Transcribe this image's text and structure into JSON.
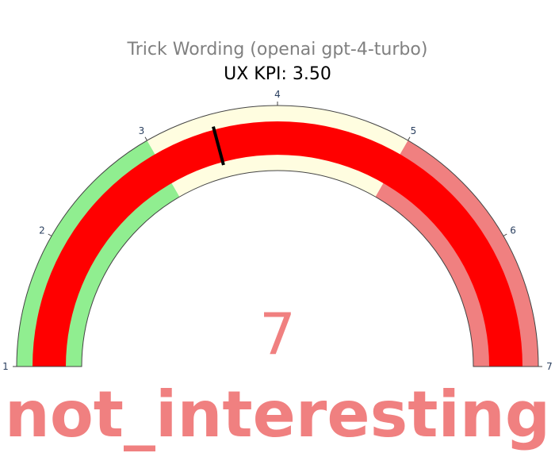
{
  "chart_data": {
    "type": "gauge",
    "title": "Trick Wording (openai gpt-4-turbo)",
    "subtitle": "UX KPI: 3.50",
    "range": [
      1,
      7
    ],
    "ticks": [
      "1",
      "2",
      "3",
      "4",
      "5",
      "6",
      "7"
    ],
    "steps": [
      {
        "range": [
          1,
          3
        ],
        "color": "#90ee90"
      },
      {
        "range": [
          3,
          5
        ],
        "color": "#fffde0"
      },
      {
        "range": [
          5,
          7
        ],
        "color": "#f08080"
      }
    ],
    "value": 7,
    "value_display": "7",
    "bar_color": "#ff0000",
    "threshold": 3.5,
    "threshold_color": "#000000",
    "label": "not_interesting",
    "label_color": "#f08080",
    "title_color": "#808080",
    "tick_color": "#2a3f5f"
  }
}
